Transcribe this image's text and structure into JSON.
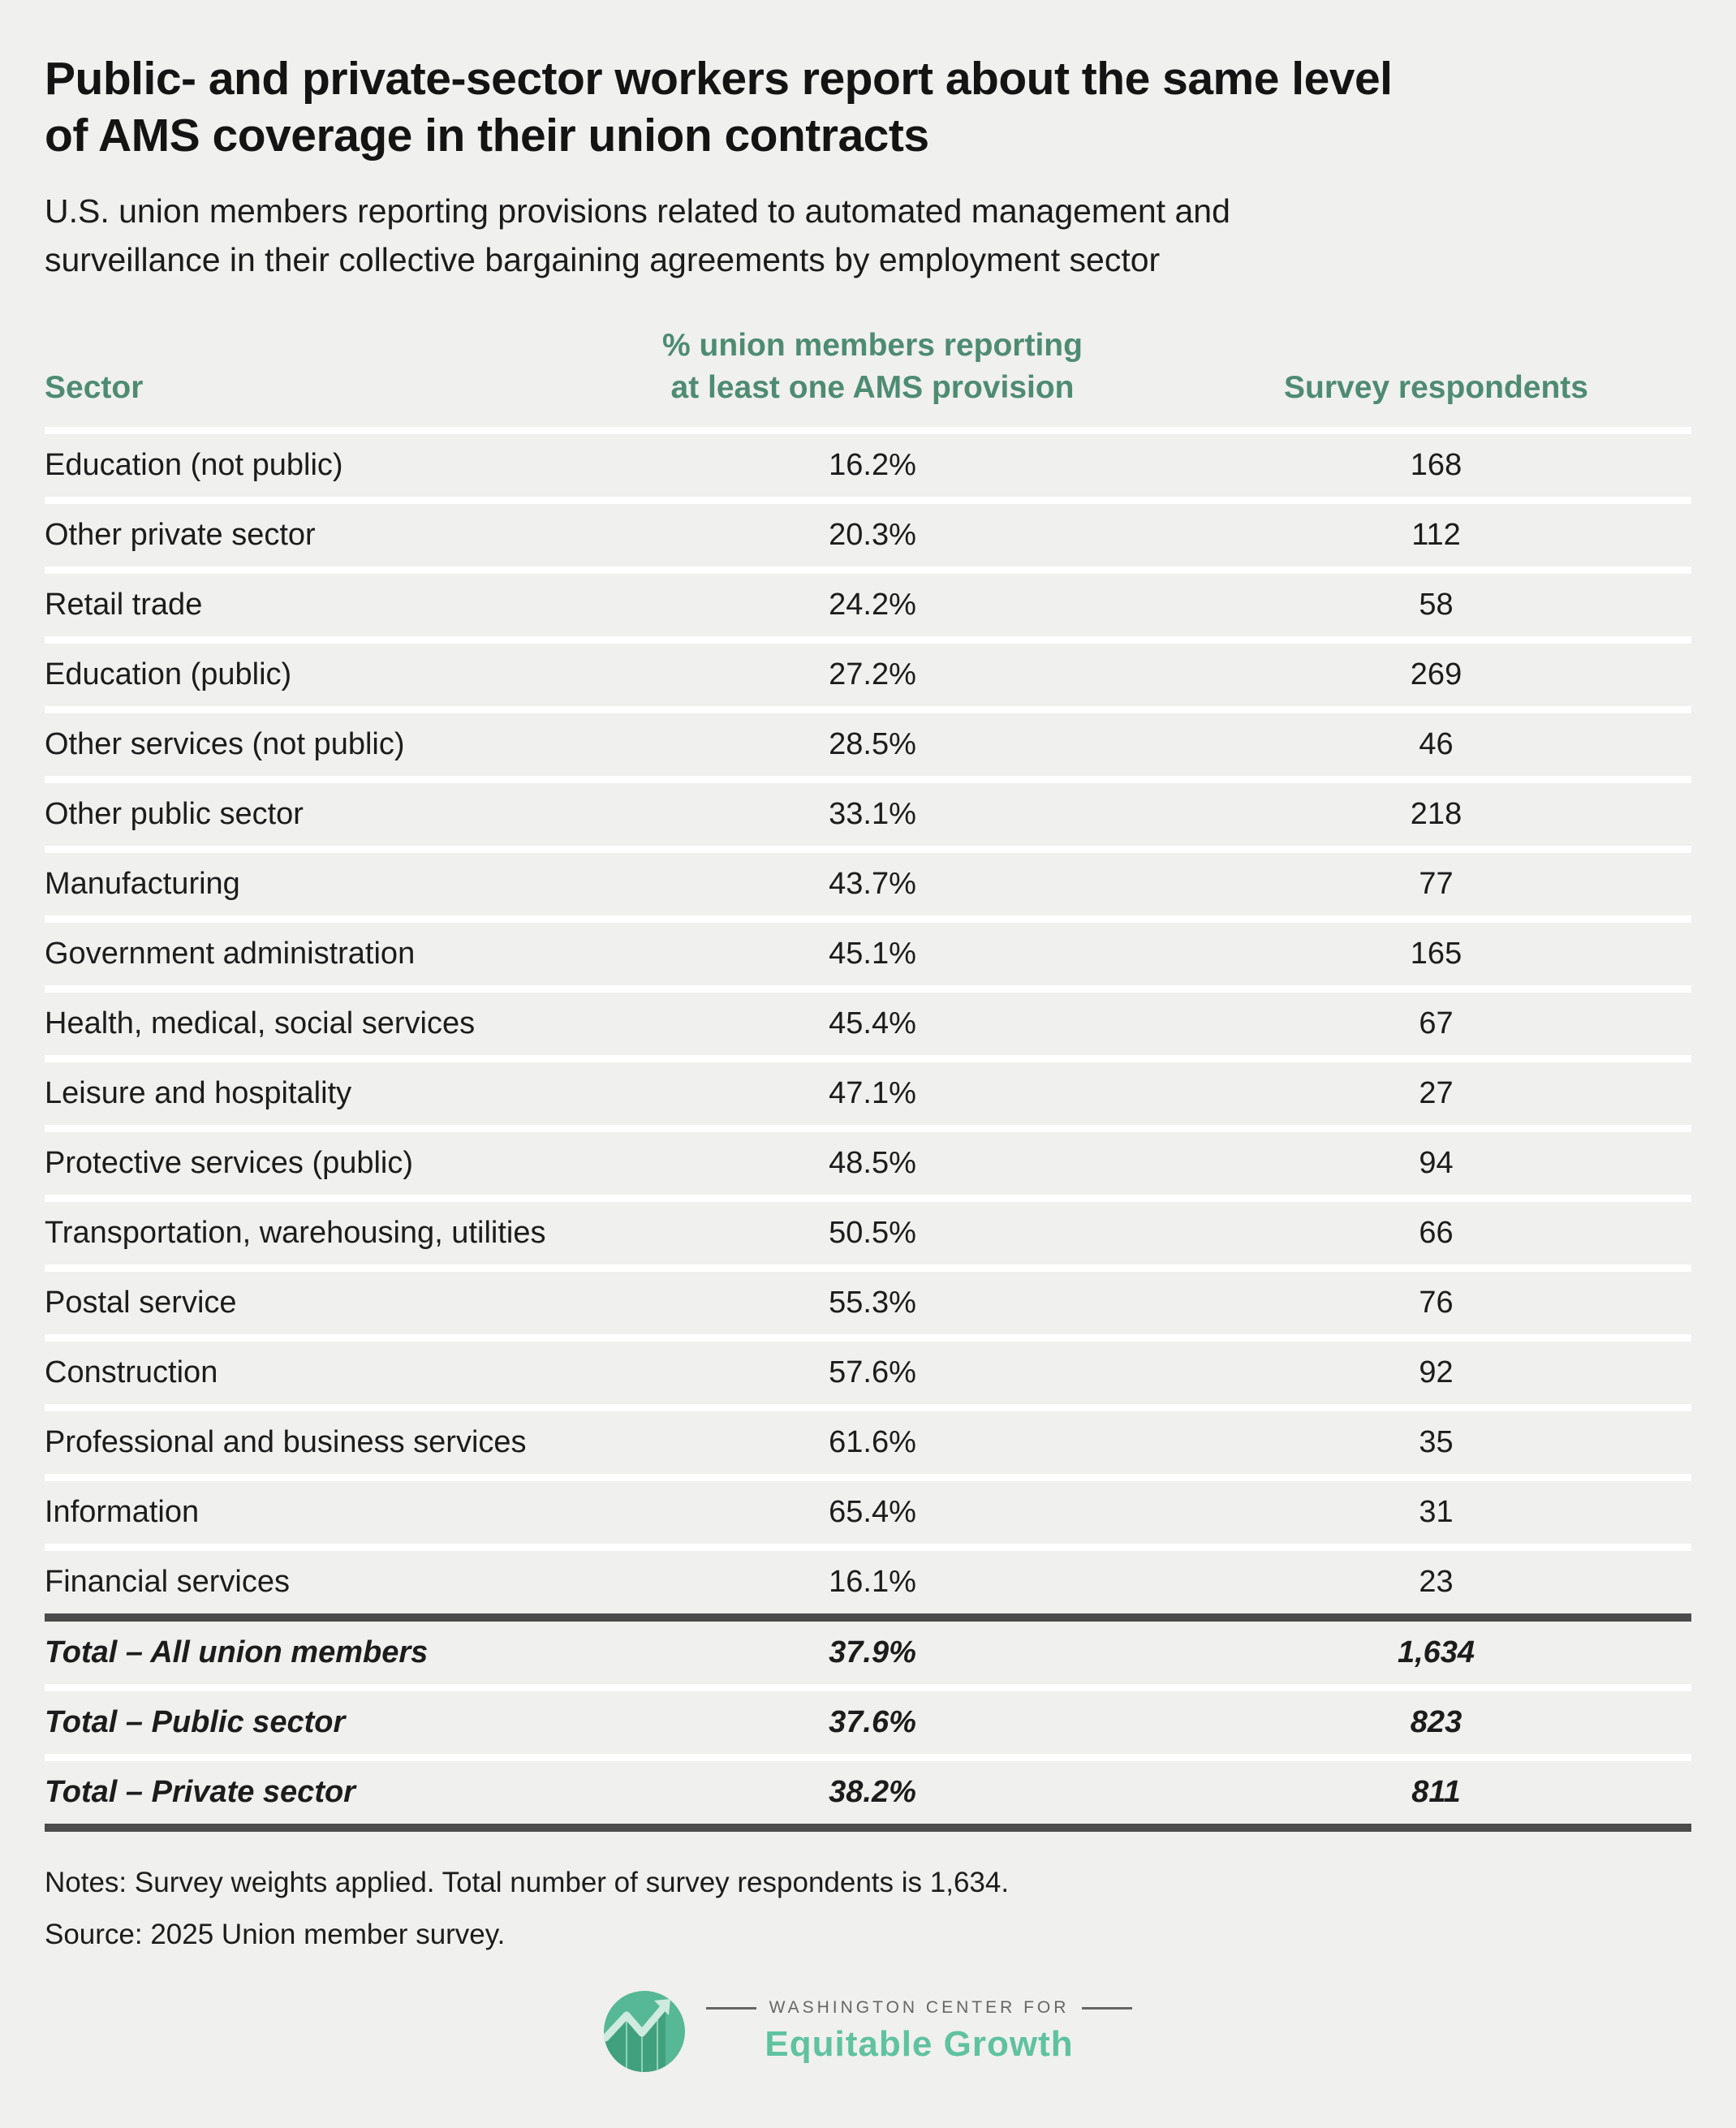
{
  "header": {
    "title_lines": [
      "Public- and private-sector workers report about the same level",
      "of AMS coverage in their union contracts"
    ],
    "subtitle_lines": [
      "U.S. union members reporting provisions related to automated management and",
      "surveillance in their collective bargaining agreements by employment sector"
    ]
  },
  "table": {
    "columns": {
      "sector": "Sector",
      "pct_line1": "% union members reporting",
      "pct_line2": "at least one AMS provision",
      "respondents": "Survey respondents"
    },
    "rows": [
      {
        "sector": "Education (not public)",
        "pct": "16.2%",
        "respondents": "168"
      },
      {
        "sector": "Other private sector",
        "pct": "20.3%",
        "respondents": "112"
      },
      {
        "sector": "Retail trade",
        "pct": "24.2%",
        "respondents": "58"
      },
      {
        "sector": "Education (public)",
        "pct": "27.2%",
        "respondents": "269"
      },
      {
        "sector": "Other services (not public)",
        "pct": "28.5%",
        "respondents": "46"
      },
      {
        "sector": "Other public sector",
        "pct": "33.1%",
        "respondents": "218"
      },
      {
        "sector": "Manufacturing",
        "pct": "43.7%",
        "respondents": "77"
      },
      {
        "sector": "Government administration",
        "pct": "45.1%",
        "respondents": "165"
      },
      {
        "sector": "Health, medical, social services",
        "pct": "45.4%",
        "respondents": "67"
      },
      {
        "sector": "Leisure and hospitality",
        "pct": "47.1%",
        "respondents": "27"
      },
      {
        "sector": "Protective services (public)",
        "pct": "48.5%",
        "respondents": "94"
      },
      {
        "sector": "Transportation, warehousing, utilities",
        "pct": "50.5%",
        "respondents": "66"
      },
      {
        "sector": "Postal service",
        "pct": "55.3%",
        "respondents": "76"
      },
      {
        "sector": "Construction",
        "pct": "57.6%",
        "respondents": "92"
      },
      {
        "sector": "Professional and business services",
        "pct": "61.6%",
        "respondents": "35"
      },
      {
        "sector": "Information",
        "pct": "65.4%",
        "respondents": "31"
      },
      {
        "sector": "Financial services",
        "pct": "16.1%",
        "respondents": "23"
      }
    ],
    "totals": [
      {
        "sector": "Total – All union members",
        "pct": "37.9%",
        "respondents": "1,634"
      },
      {
        "sector": "Total – Public sector",
        "pct": "37.6%",
        "respondents": "823"
      },
      {
        "sector": "Total – Private sector",
        "pct": "38.2%",
        "respondents": "811"
      }
    ]
  },
  "chart_data": {
    "type": "table",
    "title": "Public- and private-sector workers report about the same level of AMS coverage in their union contracts",
    "subtitle": "U.S. union members reporting provisions related to automated management and surveillance in their collective bargaining agreements by employment sector",
    "columns": [
      "Sector",
      "% union members reporting at least one AMS provision",
      "Survey respondents"
    ],
    "rows": [
      [
        "Education (not public)",
        16.2,
        168
      ],
      [
        "Other private sector",
        20.3,
        112
      ],
      [
        "Retail trade",
        24.2,
        58
      ],
      [
        "Education (public)",
        27.2,
        269
      ],
      [
        "Other services (not public)",
        28.5,
        46
      ],
      [
        "Other public sector",
        33.1,
        218
      ],
      [
        "Manufacturing",
        43.7,
        77
      ],
      [
        "Government administration",
        45.1,
        165
      ],
      [
        "Health, medical, social services",
        45.4,
        67
      ],
      [
        "Leisure and hospitality",
        47.1,
        27
      ],
      [
        "Protective services (public)",
        48.5,
        94
      ],
      [
        "Transportation, warehousing, utilities",
        50.5,
        66
      ],
      [
        "Postal service",
        55.3,
        76
      ],
      [
        "Construction",
        57.6,
        92
      ],
      [
        "Professional and business services",
        61.6,
        35
      ],
      [
        "Information",
        65.4,
        31
      ],
      [
        "Financial services",
        16.1,
        23
      ]
    ],
    "totals": [
      [
        "Total – All union members",
        37.9,
        1634
      ],
      [
        "Total – Public sector",
        37.6,
        823
      ],
      [
        "Total – Private sector",
        38.2,
        811
      ]
    ]
  },
  "footer": {
    "notes": "Notes: Survey weights applied. Total number of survey respondents is 1,634.",
    "source": "Source: 2025 Union member survey.",
    "logo": {
      "top_line": "WASHINGTON CENTER FOR",
      "name": "Equitable Growth",
      "icon": "logo-circle-chart-icon"
    }
  },
  "colors": {
    "background": "#f0f0ee",
    "header_green": "#4e8b73",
    "row_separator": "#ffffff",
    "rule_dark": "#4c4c4c",
    "text": "#1c1c1c",
    "logo_circle": "#56b896",
    "logo_circle_dark": "#41a17f",
    "logo_zigzag": "#cfeadf",
    "logo_wordmark": "#5fc2a0",
    "logo_gray": "#666666"
  }
}
